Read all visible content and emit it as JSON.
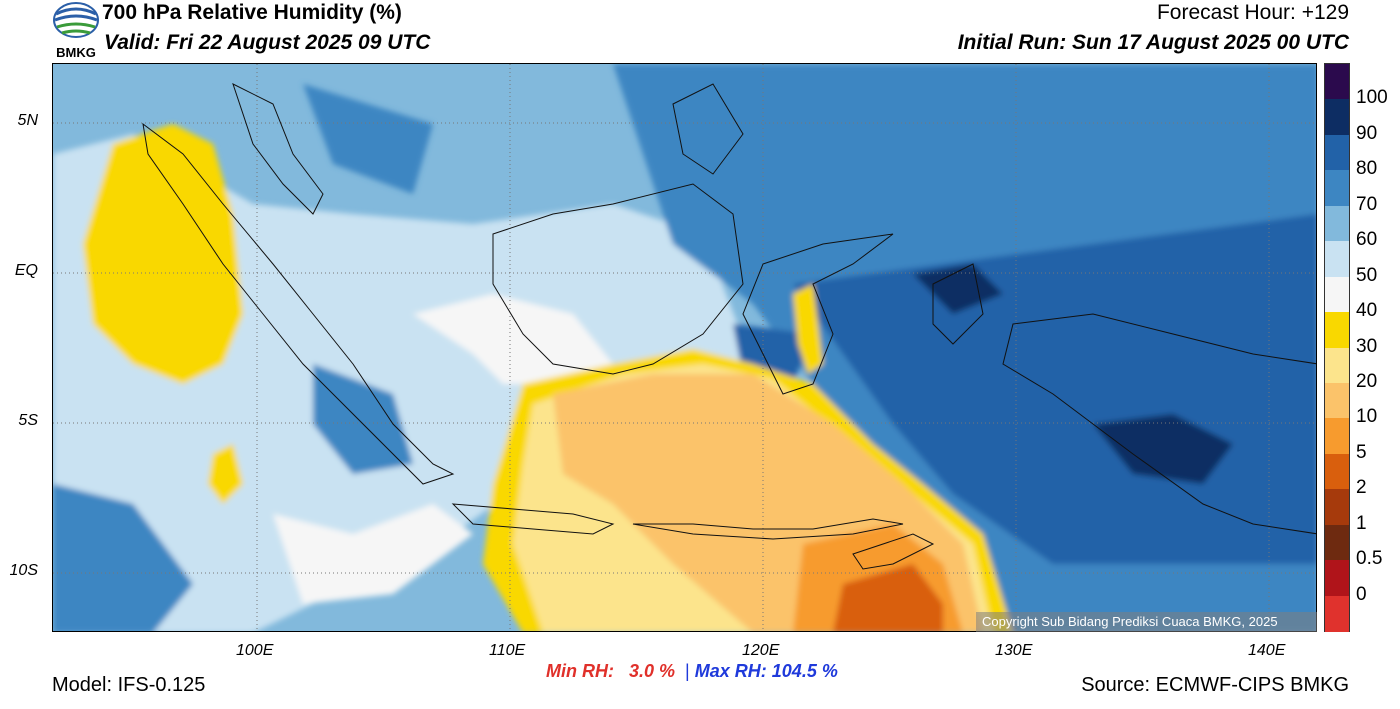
{
  "header": {
    "title": "700 hPa Relative Humidity (%)",
    "valid": "Valid: Fri 22 August 2025 09 UTC",
    "forecast_hour": "Forecast Hour: +129",
    "initial_run": "Initial Run: Sun 17 August 2025 00 UTC",
    "logo_text": "BMKG"
  },
  "axes": {
    "lat_labels": [
      "5N",
      "EQ",
      "5S",
      "10S"
    ],
    "lon_labels": [
      "100E",
      "110E",
      "120E",
      "130E",
      "140E"
    ]
  },
  "stats": {
    "min_label": "Min RH:",
    "min_value": "3.0 %",
    "separator": "|",
    "max_label": "Max RH:",
    "max_value": "104.5 %"
  },
  "footer": {
    "model": "Model: IFS-0.125",
    "source": "Source: ECMWF-CIPS BMKG",
    "copyright": "Copyright Sub Bidang Prediksi Cuaca BMKG, 2025"
  },
  "colorbar": {
    "labels": [
      "100",
      "90",
      "80",
      "70",
      "60",
      "50",
      "40",
      "30",
      "20",
      "10",
      "5",
      "2",
      "1",
      "0.5",
      "0"
    ],
    "colors": [
      "#2b0a4d",
      "#0d2d63",
      "#2262a8",
      "#3d86c2",
      "#82b9dc",
      "#c9e2f2",
      "#f6f6f6",
      "#f9d800",
      "#fce48c",
      "#fbc36a",
      "#f79b2e",
      "#d95f0d",
      "#a63a0c",
      "#6e2a10",
      "#b0141a",
      "#e0322d"
    ]
  }
}
